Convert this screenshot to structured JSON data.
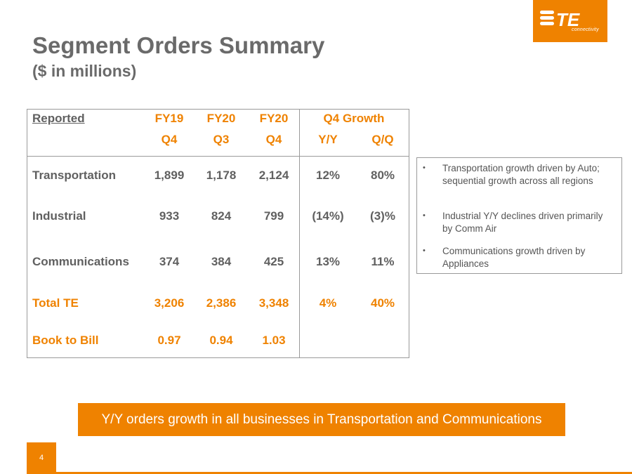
{
  "logo": {
    "mark": "TE",
    "tagline": "connectivity"
  },
  "title": "Segment Orders Summary",
  "subtitle": "($ in millions)",
  "table": {
    "header": {
      "reported": "Reported",
      "fy19": "FY19",
      "fy20a": "FY20",
      "fy20b": "FY20",
      "fy19_q": "Q4",
      "fy20a_q": "Q3",
      "fy20b_q": "Q4",
      "growth": "Q4 Growth",
      "yy": "Y/Y",
      "qq": "Q/Q"
    },
    "rows": [
      {
        "label": "Transportation",
        "fy19": "1,899",
        "fy20q3": "1,178",
        "fy20q4": "2,124",
        "yy": "12%",
        "qq": "80%"
      },
      {
        "label": "Industrial",
        "fy19": "933",
        "fy20q3": "824",
        "fy20q4": "799",
        "yy": "(14%)",
        "qq": "(3)%"
      },
      {
        "label": "Communications",
        "fy19": "374",
        "fy20q3": "384",
        "fy20q4": "425",
        "yy": "13%",
        "qq": "11%"
      },
      {
        "label": "Total TE",
        "fy19": "3,206",
        "fy20q3": "2,386",
        "fy20q4": "3,348",
        "yy": "4%",
        "qq": "40%"
      },
      {
        "label": "Book to Bill",
        "fy19": "0.97",
        "fy20q3": "0.94",
        "fy20q4": "1.03"
      }
    ]
  },
  "notes": [
    "Transportation growth driven by Auto; sequential growth across all regions",
    "Industrial Y/Y declines driven primarily by Comm Air",
    "Communications growth driven by Appliances"
  ],
  "banner": "Y/Y orders growth in all businesses in Transportation and Communications",
  "page_number": "4",
  "colors": {
    "accent": "#ef8200",
    "text": "#606060"
  }
}
